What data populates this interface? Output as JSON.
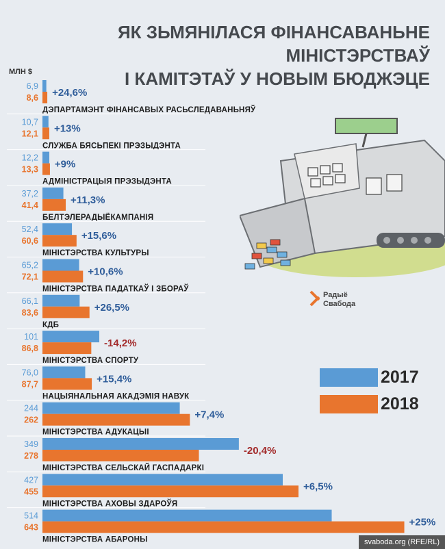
{
  "title_line1": "ЯК ЗЬМЯНІЛАСЯ ФІНАНСАВАНЬНЕ МІНІСТЭРСТВАЎ",
  "title_line2": "І КАМІТЭТАЎ У НОВЫМ БЮДЖЭЦЕ",
  "unit_label": "МЛН $",
  "logo_line1": "Радыё",
  "logo_line2": "Свабода",
  "footer": "svaboda.org (RFE/RL)",
  "colors": {
    "y2017": "#5a9bd5",
    "y2018": "#e8752e",
    "positive": "#2f5d9a",
    "negative": "#a32b2b"
  },
  "chart_data": {
    "type": "bar",
    "orientation": "horizontal",
    "title": "ЯК ЗЬМЯНІЛАСЯ ФІНАНСАВАНЬНЕ МІНІСТЭРСТВАЎ І КАМІТЭТАЎ У НОВЫМ БЮДЖЭЦЕ",
    "unit": "МЛН $",
    "legend_position": "right",
    "categories": [
      "ДЭПАРТАМЭНТ ФІНАНСАВЫХ РАСЬСЛЕДАВАНЬНЯЎ",
      "СЛУЖБА БЯСЬПЕКІ ПРЭЗЫДЭНТА",
      "АДМІНІСТРАЦЫЯ ПРЭЗЫДЭНТА",
      "БЕЛТЭЛЕРАДЫЁКАМПАНІЯ",
      "МІНІСТЭРСТВА КУЛЬТУРЫ",
      "МІНІСТЭРСТВА ПАДАТКАЎ І ЗБОРАЎ",
      "КДБ",
      "МІНІСТЭРСТВА СПОРТУ",
      "НАЦЫЯНАЛЬНАЯ АКАДЭМІЯ НАВУК",
      "МІНІСТЭРСТВА АДУКАЦЫІ",
      "МІНІСТЭРСТВА СЕЛЬСКАЙ ГАСПАДАРКІ",
      "МІНІСТЭРСТВА АХОВЫ ЗДАРОЎЯ",
      "МІНІСТЭРСТВА АБАРОНЫ"
    ],
    "series": [
      {
        "name": "2017",
        "values": [
          6.9,
          10.7,
          12.2,
          37.2,
          52.4,
          65.2,
          66.1,
          101,
          76.0,
          244,
          349,
          427,
          514
        ],
        "labels": [
          "6,9",
          "10,7",
          "12,2",
          "37,2",
          "52,4",
          "65,2",
          "66,1",
          "101",
          "76,0",
          "244",
          "349",
          "427",
          "514"
        ]
      },
      {
        "name": "2018",
        "values": [
          8.6,
          12.1,
          13.3,
          41.4,
          60.6,
          72.1,
          83.6,
          86.8,
          87.7,
          262,
          278,
          455,
          643
        ],
        "labels": [
          "8,6",
          "12,1",
          "13,3",
          "41,4",
          "60,6",
          "72,1",
          "83,6",
          "86,8",
          "87,7",
          "262",
          "278",
          "455",
          "643"
        ]
      }
    ],
    "changes": [
      "+24,6%",
      "+13%",
      "+9%",
      "+11,3%",
      "+15,6%",
      "+10,6%",
      "+26,5%",
      "-14,2%",
      "+15,4%",
      "+7,4%",
      "-20,4%",
      "+6,5%",
      "+25%"
    ],
    "legend": [
      "2017",
      "2018"
    ]
  }
}
